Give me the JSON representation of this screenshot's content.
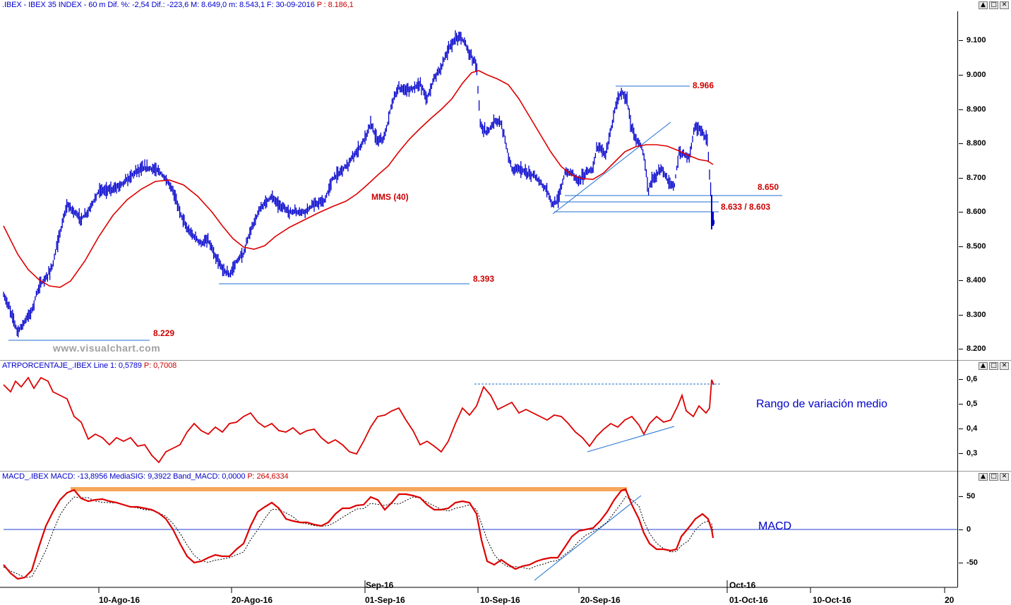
{
  "panels": {
    "price": {
      "title_prefix": ".IBEX - IBEX 35 INDEX - 60 m  Dif. %: -2,54  Dif.: -223,6  M: 8.649,0  m: 8.543,1  F: 30-09-2016",
      "title_suffix": "P : 8.186,1",
      "y_labels": [
        "9.100",
        "9.000",
        "8.900",
        "8.800",
        "8.700",
        "8.600",
        "8.500",
        "8.400",
        "8.300",
        "8.200"
      ],
      "annotations": {
        "level_8966": "8.966",
        "level_8650": "8.650",
        "level_8633_8603": "8.633 / 8.603",
        "level_8393": "8.393",
        "level_8229": "8.229",
        "mms": "MMS (40)"
      },
      "watermark": "www.visualchart.com"
    },
    "atr": {
      "title_prefix": "ATRPORCENTAJE_.IBEX  Line 1: 0,5789",
      "title_suffix": "P: 0,7008",
      "y_labels": [
        "0,6",
        "0,5",
        "0,4",
        "0,3"
      ],
      "caption": "Rango de variación medio"
    },
    "macd": {
      "title_prefix": "MACD_.IBEX  MACD: -13,8956  MediaSIG: 9,3922  Band_MACD: 0,0000",
      "title_suffix": "P: 264,6334",
      "y_labels": [
        "50",
        "0",
        "-50"
      ],
      "caption": "MACD"
    }
  },
  "x_axis": {
    "labels": [
      "10-Ago-16",
      "20-Ago-16",
      "01-Sep-16",
      "10-Sep-16",
      "20-Sep-16",
      "01-Oct-16",
      "10-Oct-16",
      "20"
    ],
    "month_labels": [
      "Sep-16",
      "Oct-16"
    ]
  },
  "window_buttons": {
    "minimize": "▲",
    "restore": "□",
    "close": "✕"
  },
  "colors": {
    "price": "#0000cc",
    "mms": "#dd0000",
    "atr": "#dd0000",
    "macd": "#dd0000",
    "signal": "#000000",
    "highlight": "#f5a65b",
    "trendline": "#1f6fd1"
  }
}
